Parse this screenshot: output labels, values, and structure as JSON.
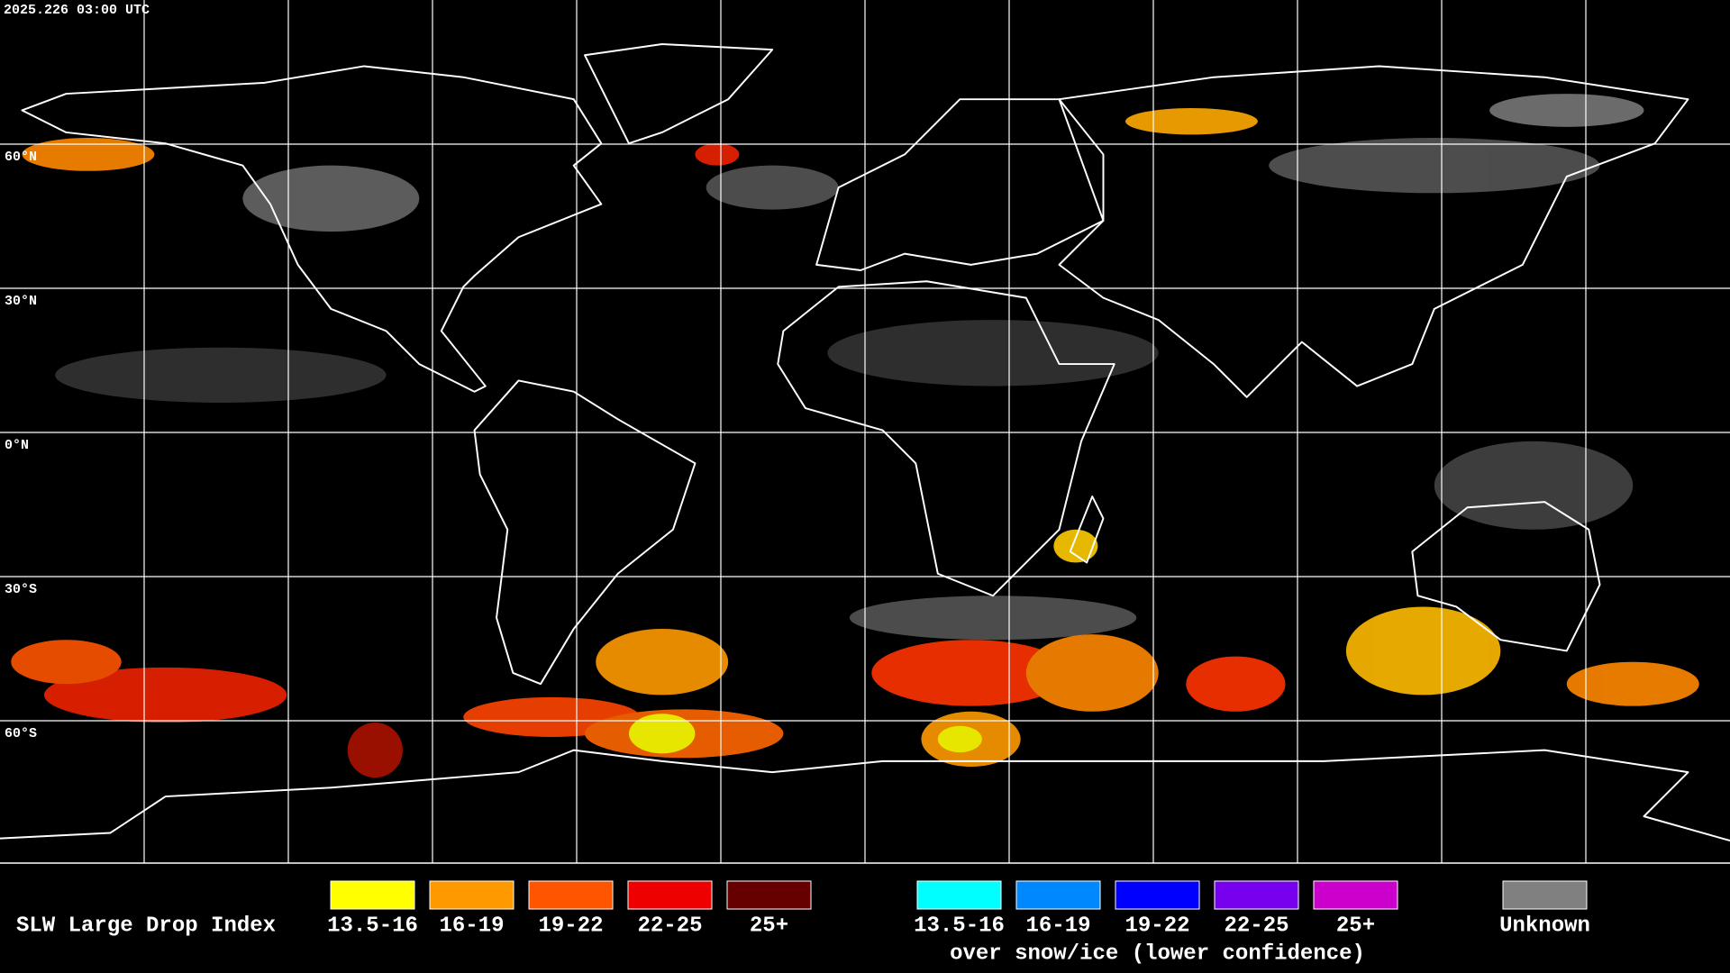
{
  "timestamp": "2025.226 03:00 UTC",
  "latitude_labels": [
    "60°N",
    "30°N",
    "0°N",
    "30°S",
    "60°S"
  ],
  "legend": {
    "title": "SLW Large Drop Index",
    "groups": [
      {
        "items": [
          {
            "label": "13.5-16",
            "color": "#ffff00"
          },
          {
            "label": "16-19",
            "color": "#ff9900"
          },
          {
            "label": "19-22",
            "color": "#ff5500"
          },
          {
            "label": "22-25",
            "color": "#ee0000"
          },
          {
            "label": "25+",
            "color": "#660000"
          }
        ]
      },
      {
        "items": [
          {
            "label": "13.5-16",
            "color": "#00ffff"
          },
          {
            "label": "16-19",
            "color": "#0088ff"
          },
          {
            "label": "19-22",
            "color": "#0000ff"
          },
          {
            "label": "22-25",
            "color": "#7700ee"
          },
          {
            "label": "25+",
            "color": "#cc00cc"
          }
        ],
        "caption": "over snow/ice (lower confidence)"
      }
    ],
    "unknown": {
      "label": "Unknown",
      "color": "#808080"
    }
  }
}
